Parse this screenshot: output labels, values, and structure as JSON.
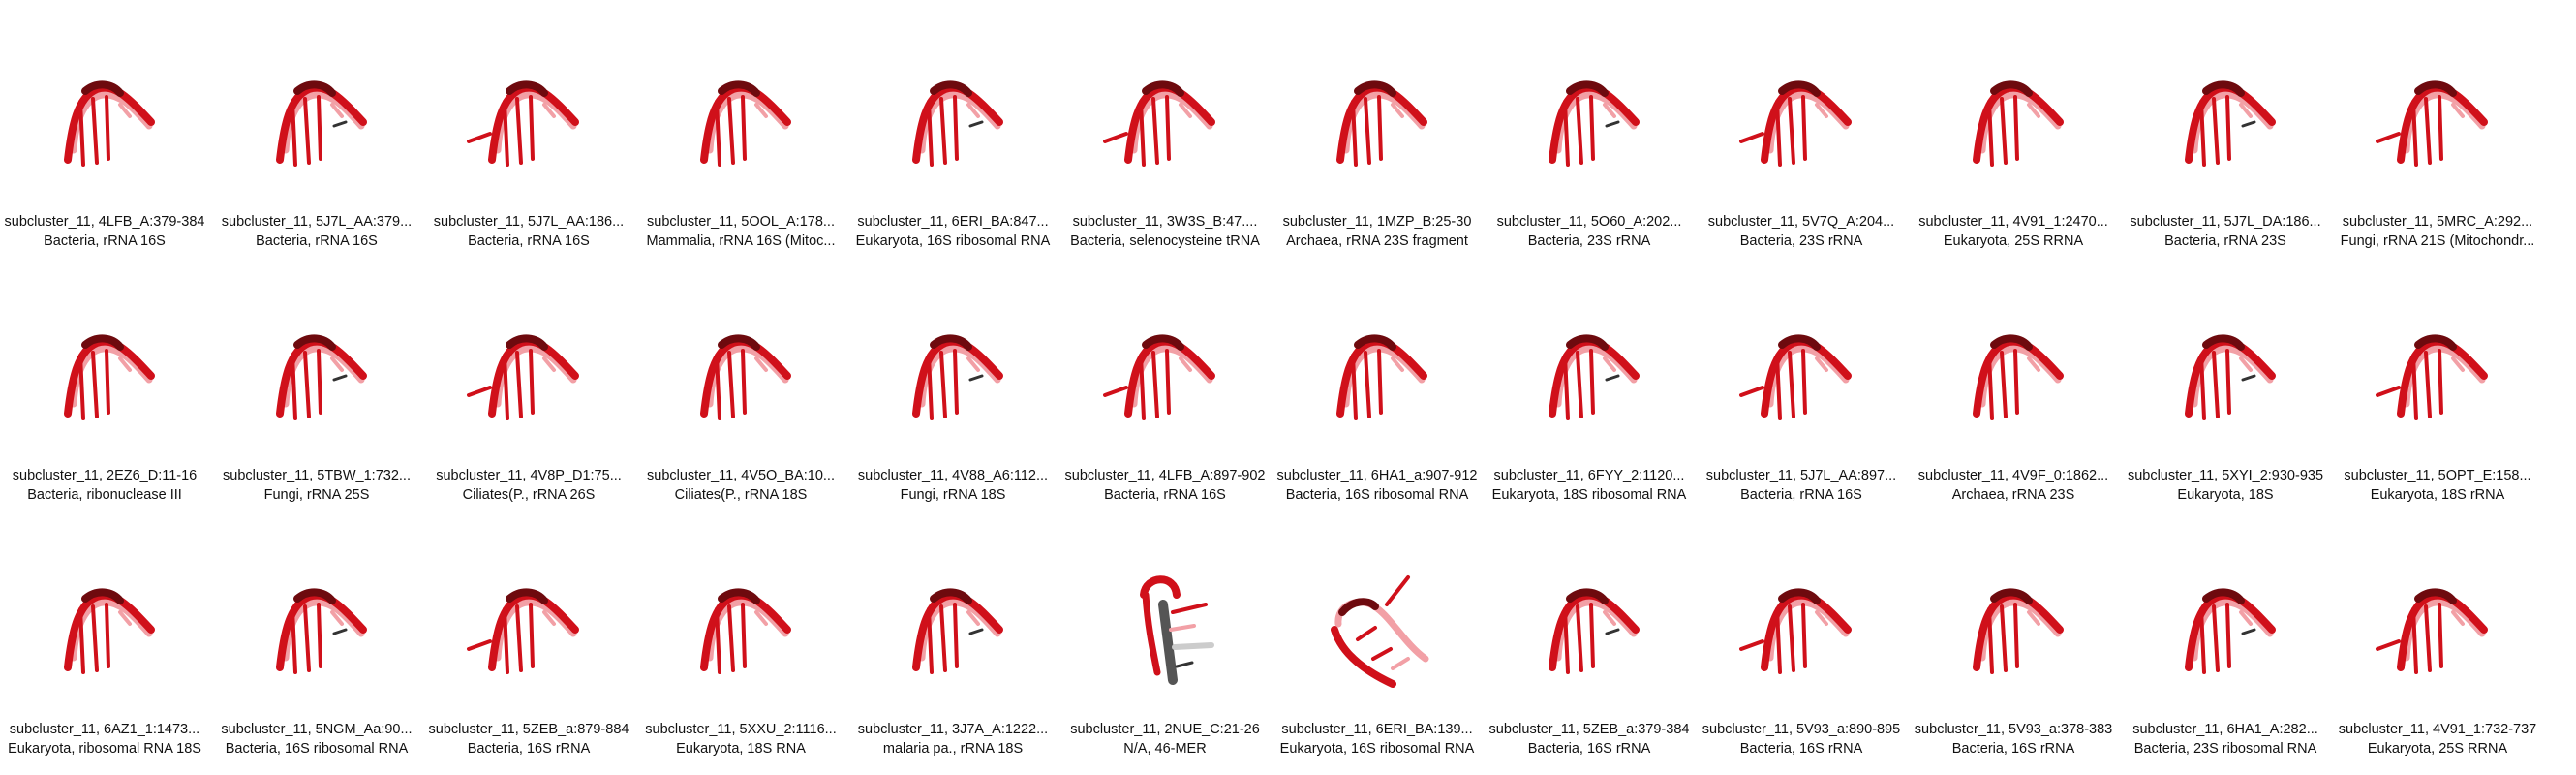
{
  "colors": {
    "backbone": "#d0101a",
    "backbone_dark": "#6e0a0e",
    "backbone_light": "#f2a0a6",
    "strand_grey": "#555555"
  },
  "rows": [
    [
      {
        "title": "subcluster_11, 4LFB_A:379-384",
        "sub": "Bacteria, rRNA 16S",
        "icon": "rna-hairpin-icon"
      },
      {
        "title": "subcluster_11, 5J7L_AA:379...",
        "sub": "Bacteria, rRNA 16S",
        "icon": "rna-hairpin-icon"
      },
      {
        "title": "subcluster_11, 5J7L_AA:186...",
        "sub": "Bacteria, rRNA 16S",
        "icon": "rna-hairpin-icon"
      },
      {
        "title": "subcluster_11, 5OOL_A:178...",
        "sub": "Mammalia, rRNA 16S (Mitoc...",
        "icon": "rna-hairpin-icon"
      },
      {
        "title": "subcluster_11, 6ERI_BA:847...",
        "sub": "Eukaryota, 16S ribosomal RNA",
        "icon": "rna-hairpin-icon"
      },
      {
        "title": "subcluster_11, 3W3S_B:47....",
        "sub": "Bacteria, selenocysteine tRNA",
        "icon": "rna-hairpin-icon"
      },
      {
        "title": "subcluster_11, 1MZP_B:25-30",
        "sub": "Archaea, rRNA 23S fragment",
        "icon": "rna-hairpin-icon"
      },
      {
        "title": "subcluster_11, 5O60_A:202...",
        "sub": "Bacteria, 23S rRNA",
        "icon": "rna-hairpin-icon"
      },
      {
        "title": "subcluster_11, 5V7Q_A:204...",
        "sub": "Bacteria, 23S rRNA",
        "icon": "rna-hairpin-icon"
      },
      {
        "title": "subcluster_11, 4V91_1:2470...",
        "sub": "Eukaryota, 25S RRNA",
        "icon": "rna-hairpin-icon"
      },
      {
        "title": "subcluster_11, 5J7L_DA:186...",
        "sub": "Bacteria, rRNA 23S",
        "icon": "rna-hairpin-icon"
      },
      {
        "title": "subcluster_11, 5MRC_A:292...",
        "sub": "Fungi, rRNA 21S (Mitochondr...",
        "icon": "rna-hairpin-icon"
      }
    ],
    [
      {
        "title": "subcluster_11, 2EZ6_D:11-16",
        "sub": "Bacteria, ribonuclease III",
        "icon": "rna-hairpin-icon"
      },
      {
        "title": "subcluster_11, 5TBW_1:732...",
        "sub": "Fungi, rRNA 25S",
        "icon": "rna-hairpin-icon"
      },
      {
        "title": "subcluster_11, 4V8P_D1:75...",
        "sub": "Ciliates(P., rRNA 26S",
        "icon": "rna-hairpin-icon"
      },
      {
        "title": "subcluster_11, 4V5O_BA:10...",
        "sub": "Ciliates(P., rRNA 18S",
        "icon": "rna-hairpin-icon"
      },
      {
        "title": "subcluster_11, 4V88_A6:112...",
        "sub": "Fungi, rRNA 18S",
        "icon": "rna-hairpin-icon"
      },
      {
        "title": "subcluster_11, 4LFB_A:897-902",
        "sub": "Bacteria, rRNA 16S",
        "icon": "rna-hairpin-icon"
      },
      {
        "title": "subcluster_11, 6HA1_a:907-912",
        "sub": "Bacteria, 16S ribosomal RNA",
        "icon": "rna-hairpin-icon"
      },
      {
        "title": "subcluster_11, 6FYY_2:1120...",
        "sub": "Eukaryota, 18S ribosomal RNA",
        "icon": "rna-hairpin-icon"
      },
      {
        "title": "subcluster_11, 5J7L_AA:897...",
        "sub": "Bacteria, rRNA 16S",
        "icon": "rna-hairpin-icon"
      },
      {
        "title": "subcluster_11, 4V9F_0:1862...",
        "sub": "Archaea, rRNA 23S",
        "icon": "rna-hairpin-icon"
      },
      {
        "title": "subcluster_11, 5XYI_2:930-935",
        "sub": "Eukaryota, 18S",
        "icon": "rna-hairpin-icon"
      },
      {
        "title": "subcluster_11, 5OPT_E:158...",
        "sub": "Eukaryota, 18S rRNA",
        "icon": "rna-hairpin-icon"
      }
    ],
    [
      {
        "title": "subcluster_11, 6AZ1_1:1473...",
        "sub": "Eukaryota, ribosomal RNA 18S",
        "icon": "rna-hairpin-icon"
      },
      {
        "title": "subcluster_11, 5NGM_Aa:90...",
        "sub": "Bacteria, 16S ribosomal RNA",
        "icon": "rna-hairpin-icon"
      },
      {
        "title": "subcluster_11, 5ZEB_a:879-884",
        "sub": "Bacteria, 16S rRNA",
        "icon": "rna-hairpin-icon"
      },
      {
        "title": "subcluster_11, 5XXU_2:1116...",
        "sub": "Eukaryota, 18S RNA",
        "icon": "rna-hairpin-icon"
      },
      {
        "title": "subcluster_11, 3J7A_A:1222...",
        "sub": "malaria pa., rRNA 18S",
        "icon": "rna-hairpin-icon"
      },
      {
        "title": "subcluster_11, 2NUE_C:21-26",
        "sub": "N/A, 46-MER",
        "icon": "rna-strand-vertical-icon"
      },
      {
        "title": "subcluster_11, 6ERI_BA:139...",
        "sub": "Eukaryota, 16S ribosomal RNA",
        "icon": "rna-strand-tilted-icon"
      },
      {
        "title": "subcluster_11, 5ZEB_a:379-384",
        "sub": "Bacteria, 16S rRNA",
        "icon": "rna-hairpin-icon"
      },
      {
        "title": "subcluster_11, 5V93_a:890-895",
        "sub": "Bacteria, 16S rRNA",
        "icon": "rna-hairpin-icon"
      },
      {
        "title": "subcluster_11, 5V93_a:378-383",
        "sub": "Bacteria, 16S rRNA",
        "icon": "rna-hairpin-icon"
      },
      {
        "title": "subcluster_11, 6HA1_A:282...",
        "sub": "Bacteria, 23S ribosomal RNA",
        "icon": "rna-hairpin-icon"
      },
      {
        "title": "subcluster_11, 4V91_1:732-737",
        "sub": "Eukaryota, 25S RRNA",
        "icon": "rna-hairpin-icon"
      }
    ]
  ]
}
